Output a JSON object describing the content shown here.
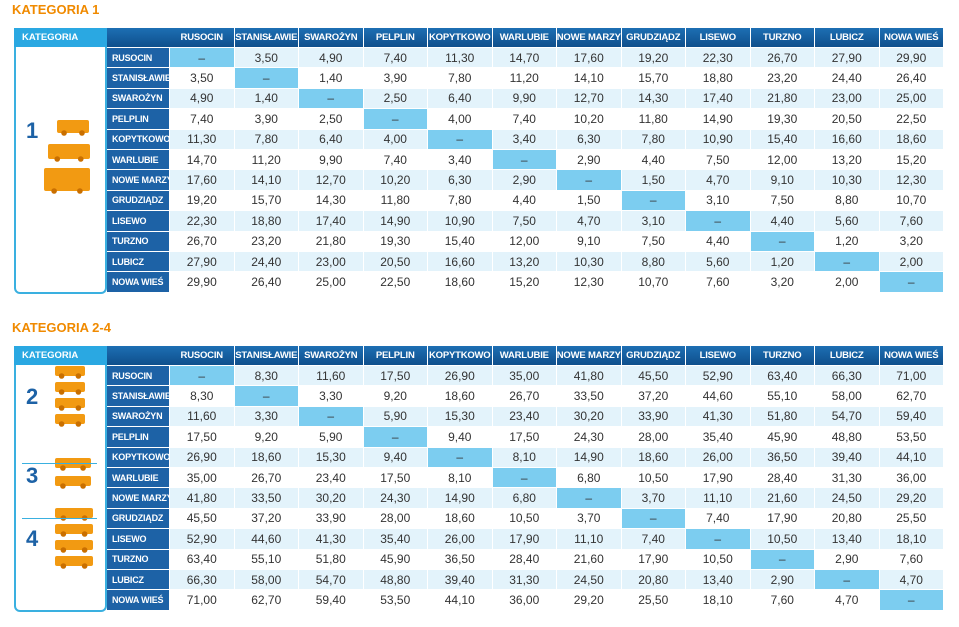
{
  "sections": [
    {
      "title": "KATEGORIA 1",
      "corner": "KATEGORIA",
      "columns": [
        "RUSOCIN",
        "STANISŁAWIE",
        "SWAROŻYN",
        "PELPLIN",
        "KOPYTKOWO",
        "WARLUBIE",
        "NOWE MARZY",
        "GRUDZIĄDZ",
        "LISEWO",
        "TURZNO",
        "LUBICZ",
        "NOWA WIEŚ"
      ],
      "categories": [
        "1"
      ],
      "rows": [
        {
          "label": "RUSOCIN",
          "cells": [
            "–",
            "3,50",
            "4,90",
            "7,40",
            "11,30",
            "14,70",
            "17,60",
            "19,20",
            "22,30",
            "26,70",
            "27,90",
            "29,90"
          ]
        },
        {
          "label": "STANISŁAWIE",
          "cells": [
            "3,50",
            "–",
            "1,40",
            "3,90",
            "7,80",
            "11,20",
            "14,10",
            "15,70",
            "18,80",
            "23,20",
            "24,40",
            "26,40"
          ]
        },
        {
          "label": "SWAROŻYN",
          "cells": [
            "4,90",
            "1,40",
            "–",
            "2,50",
            "6,40",
            "9,90",
            "12,70",
            "14,30",
            "17,40",
            "21,80",
            "23,00",
            "25,00"
          ]
        },
        {
          "label": "PELPLIN",
          "cells": [
            "7,40",
            "3,90",
            "2,50",
            "–",
            "4,00",
            "7,40",
            "10,20",
            "11,80",
            "14,90",
            "19,30",
            "20,50",
            "22,50"
          ]
        },
        {
          "label": "KOPYTKOWO",
          "cells": [
            "11,30",
            "7,80",
            "6,40",
            "4,00",
            "–",
            "3,40",
            "6,30",
            "7,80",
            "10,90",
            "15,40",
            "16,60",
            "18,60"
          ]
        },
        {
          "label": "WARLUBIE",
          "cells": [
            "14,70",
            "11,20",
            "9,90",
            "7,40",
            "3,40",
            "–",
            "2,90",
            "4,40",
            "7,50",
            "12,00",
            "13,20",
            "15,20"
          ]
        },
        {
          "label": "NOWE MARZY",
          "cells": [
            "17,60",
            "14,10",
            "12,70",
            "10,20",
            "6,30",
            "2,90",
            "–",
            "1,50",
            "4,70",
            "9,10",
            "10,30",
            "12,30"
          ]
        },
        {
          "label": "GRUDZIĄDZ",
          "cells": [
            "19,20",
            "15,70",
            "14,30",
            "11,80",
            "7,80",
            "4,40",
            "1,50",
            "–",
            "3,10",
            "7,50",
            "8,80",
            "10,70"
          ]
        },
        {
          "label": "LISEWO",
          "cells": [
            "22,30",
            "18,80",
            "17,40",
            "14,90",
            "10,90",
            "7,50",
            "4,70",
            "3,10",
            "–",
            "4,40",
            "5,60",
            "7,60"
          ]
        },
        {
          "label": "TURZNO",
          "cells": [
            "26,70",
            "23,20",
            "21,80",
            "19,30",
            "15,40",
            "12,00",
            "9,10",
            "7,50",
            "4,40",
            "–",
            "1,20",
            "3,20"
          ]
        },
        {
          "label": "LUBICZ",
          "cells": [
            "27,90",
            "24,40",
            "23,00",
            "20,50",
            "16,60",
            "13,20",
            "10,30",
            "8,80",
            "5,60",
            "1,20",
            "–",
            "2,00"
          ]
        },
        {
          "label": "NOWA WIEŚ",
          "cells": [
            "29,90",
            "26,40",
            "25,00",
            "22,50",
            "18,60",
            "15,20",
            "12,30",
            "10,70",
            "7,60",
            "3,20",
            "2,00",
            "–"
          ]
        }
      ]
    },
    {
      "title": "KATEGORIA 2-4",
      "corner": "KATEGORIA",
      "columns": [
        "RUSOCIN",
        "STANISŁAWIE",
        "SWAROŻYN",
        "PELPLIN",
        "KOPYTKOWO",
        "WARLUBIE",
        "NOWE MARZY",
        "GRUDZIĄDZ",
        "LISEWO",
        "TURZNO",
        "LUBICZ",
        "NOWA WIEŚ"
      ],
      "categories": [
        "2",
        "3",
        "4"
      ],
      "rows": [
        {
          "label": "RUSOCIN",
          "cells": [
            "–",
            "8,30",
            "11,60",
            "17,50",
            "26,90",
            "35,00",
            "41,80",
            "45,50",
            "52,90",
            "63,40",
            "66,30",
            "71,00"
          ]
        },
        {
          "label": "STANISŁAWIE",
          "cells": [
            "8,30",
            "–",
            "3,30",
            "9,20",
            "18,60",
            "26,70",
            "33,50",
            "37,20",
            "44,60",
            "55,10",
            "58,00",
            "62,70"
          ]
        },
        {
          "label": "SWAROŻYN",
          "cells": [
            "11,60",
            "3,30",
            "–",
            "5,90",
            "15,30",
            "23,40",
            "30,20",
            "33,90",
            "41,30",
            "51,80",
            "54,70",
            "59,40"
          ]
        },
        {
          "label": "PELPLIN",
          "cells": [
            "17,50",
            "9,20",
            "5,90",
            "–",
            "9,40",
            "17,50",
            "24,30",
            "28,00",
            "35,40",
            "45,90",
            "48,80",
            "53,50"
          ]
        },
        {
          "label": "KOPYTKOWO",
          "cells": [
            "26,90",
            "18,60",
            "15,30",
            "9,40",
            "–",
            "8,10",
            "14,90",
            "18,60",
            "26,00",
            "36,50",
            "39,40",
            "44,10"
          ]
        },
        {
          "label": "WARLUBIE",
          "cells": [
            "35,00",
            "26,70",
            "23,40",
            "17,50",
            "8,10",
            "–",
            "6,80",
            "10,50",
            "17,90",
            "28,40",
            "31,30",
            "36,00"
          ]
        },
        {
          "label": "NOWE MARZY",
          "cells": [
            "41,80",
            "33,50",
            "30,20",
            "24,30",
            "14,90",
            "6,80",
            "–",
            "3,70",
            "11,10",
            "21,60",
            "24,50",
            "29,20"
          ]
        },
        {
          "label": "GRUDZIĄDZ",
          "cells": [
            "45,50",
            "37,20",
            "33,90",
            "28,00",
            "18,60",
            "10,50",
            "3,70",
            "–",
            "7,40",
            "17,90",
            "20,80",
            "25,50"
          ]
        },
        {
          "label": "LISEWO",
          "cells": [
            "52,90",
            "44,60",
            "41,30",
            "35,40",
            "26,00",
            "17,90",
            "11,10",
            "7,40",
            "–",
            "10,50",
            "13,40",
            "18,10"
          ]
        },
        {
          "label": "TURZNO",
          "cells": [
            "63,40",
            "55,10",
            "51,80",
            "45,90",
            "36,50",
            "28,40",
            "21,60",
            "17,90",
            "10,50",
            "–",
            "2,90",
            "7,60"
          ]
        },
        {
          "label": "LUBICZ",
          "cells": [
            "66,30",
            "58,00",
            "54,70",
            "48,80",
            "39,40",
            "31,30",
            "24,50",
            "20,80",
            "13,40",
            "2,90",
            "–",
            "4,70"
          ]
        },
        {
          "label": "NOWA WIEŚ",
          "cells": [
            "71,00",
            "62,70",
            "59,40",
            "53,50",
            "44,10",
            "36,00",
            "29,20",
            "25,50",
            "18,10",
            "7,60",
            "4,70",
            "–"
          ]
        }
      ]
    }
  ]
}
